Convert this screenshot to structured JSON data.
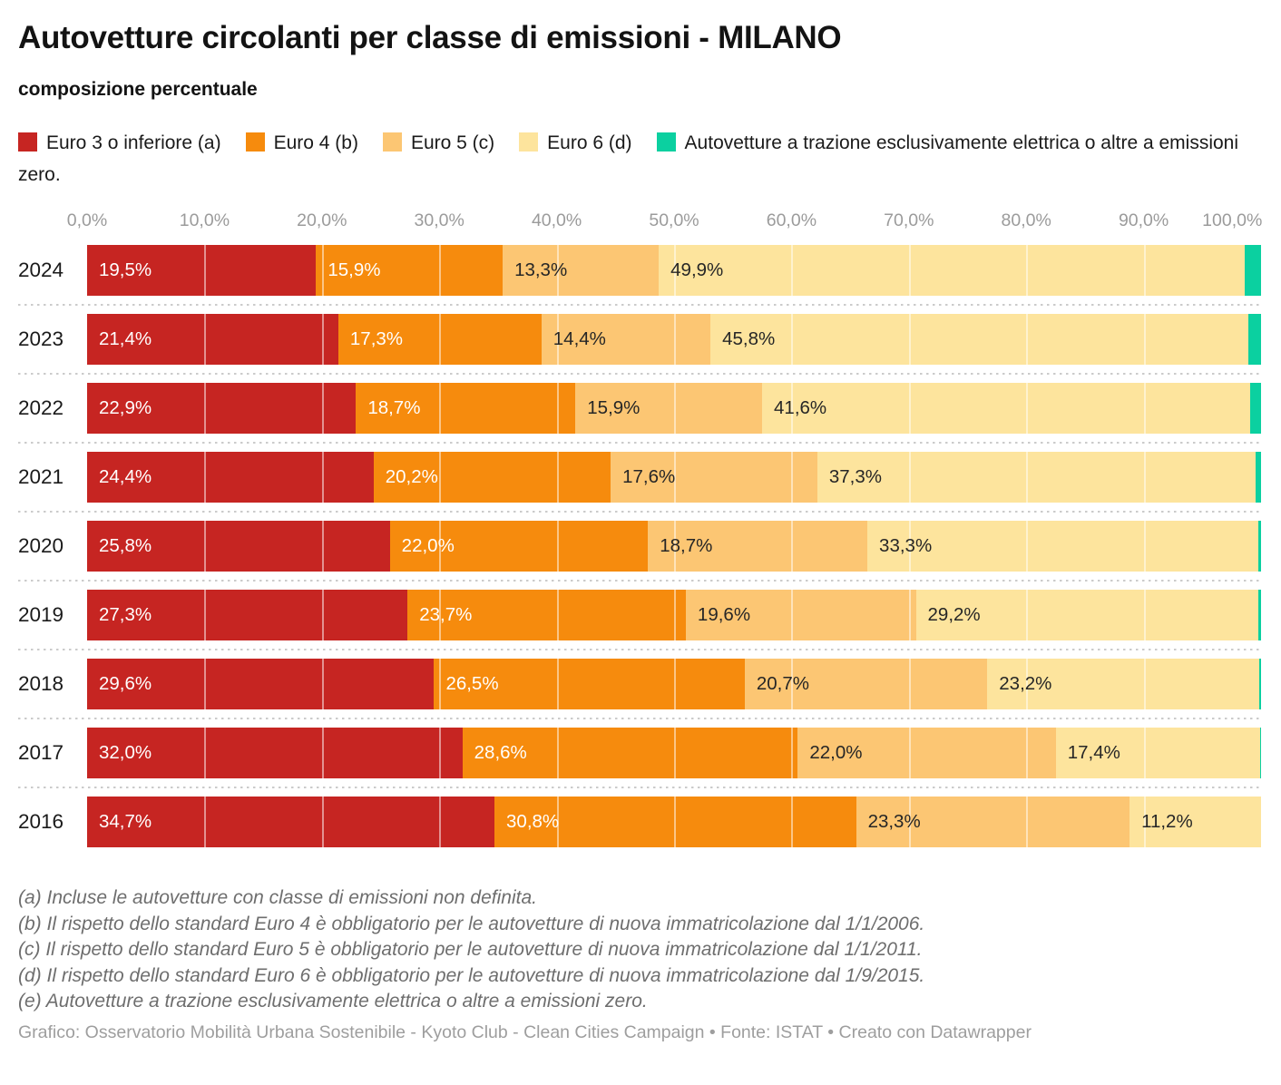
{
  "title": "Autovetture circolanti per classe di emissioni - MILANO",
  "subtitle": "composizione percentuale",
  "legend": {
    "items": [
      {
        "label": "Euro 3 o inferiore (a)",
        "color": "#c62522"
      },
      {
        "label": "Euro 4 (b)",
        "color": "#f68b0d"
      },
      {
        "label": "Euro 5 (c)",
        "color": "#fcc673"
      },
      {
        "label": "Euro 6 (d)",
        "color": "#fde49d"
      },
      {
        "label": "Autovetture a trazione esclusivamente elettrica o altre a emissioni zero.",
        "color": "#0bd0a0"
      }
    ]
  },
  "chart_data": {
    "type": "bar",
    "stacked": true,
    "orientation": "horizontal",
    "unit": "percent",
    "title": "Autovetture circolanti per classe di emissioni - MILANO",
    "subtitle": "composizione percentuale",
    "x_axis": {
      "min": 0,
      "max": 100,
      "ticks": [
        "0,0%",
        "10,0%",
        "20,0%",
        "30,0%",
        "40,0%",
        "50,0%",
        "60,0%",
        "70,0%",
        "80,0%",
        "90,0%",
        "100,0%"
      ]
    },
    "categories": [
      "2024",
      "2023",
      "2022",
      "2021",
      "2020",
      "2019",
      "2018",
      "2017",
      "2016"
    ],
    "series": [
      {
        "name": "Euro 3 o inferiore (a)",
        "color": "#c62522",
        "label_color": "#ffffff",
        "values": [
          19.5,
          21.4,
          22.9,
          24.4,
          25.8,
          27.3,
          29.6,
          32.0,
          34.7
        ],
        "labels": [
          "19,5%",
          "21,4%",
          "22,9%",
          "24,4%",
          "25,8%",
          "27,3%",
          "29,6%",
          "32,0%",
          "34,7%"
        ]
      },
      {
        "name": "Euro 4 (b)",
        "color": "#f68b0d",
        "label_color": "#ffffff",
        "values": [
          15.9,
          17.3,
          18.7,
          20.2,
          22.0,
          23.7,
          26.5,
          28.6,
          30.8
        ],
        "labels": [
          "15,9%",
          "17,3%",
          "18,7%",
          "20,2%",
          "22,0%",
          "23,7%",
          "26,5%",
          "28,6%",
          "30,8%"
        ]
      },
      {
        "name": "Euro 5 (c)",
        "color": "#fcc673",
        "label_color": "#262626",
        "values": [
          13.3,
          14.4,
          15.9,
          17.6,
          18.7,
          19.6,
          20.7,
          22.0,
          23.3
        ],
        "labels": [
          "13,3%",
          "14,4%",
          "15,9%",
          "17,6%",
          "18,7%",
          "19,6%",
          "20,7%",
          "22,0%",
          "23,3%"
        ]
      },
      {
        "name": "Euro 6 (d)",
        "color": "#fde49d",
        "label_color": "#262626",
        "values": [
          49.9,
          45.8,
          41.6,
          37.3,
          33.3,
          29.2,
          23.2,
          17.4,
          11.2
        ],
        "labels": [
          "49,9%",
          "45,8%",
          "41,6%",
          "37,3%",
          "33,3%",
          "29,2%",
          "23,2%",
          "17,4%",
          "11,2%"
        ]
      },
      {
        "name": "Autovetture a trazione esclusivamente elettrica o altre a emissioni zero (e)",
        "color": "#0bd0a0",
        "label_color": null,
        "values": [
          1.4,
          1.1,
          0.9,
          0.5,
          0.25,
          0.2,
          0.15,
          0.1,
          0
        ],
        "labels": null
      }
    ]
  },
  "footnotes": [
    "(a) Incluse le autovetture con classe di emissioni non definita.",
    "(b) Il rispetto dello standard Euro 4 è obbligatorio per le autovetture di nuova immatricolazione dal 1/1/2006.",
    "(c) Il rispetto dello standard Euro 5 è obbligatorio per le autovetture di nuova immatricolazione dal 1/1/2011.",
    "(d) Il rispetto dello standard Euro 6 è obbligatorio per le autovetture di nuova immatricolazione dal 1/9/2015.",
    "(e) Autovetture a trazione esclusivamente elettrica o altre a emissioni zero."
  ],
  "footer": "Grafico: Osservatorio Mobilità Urbana Sostenibile - Kyoto Club - Clean Cities Campaign • Fonte: ISTAT • Creato con Datawrapper"
}
